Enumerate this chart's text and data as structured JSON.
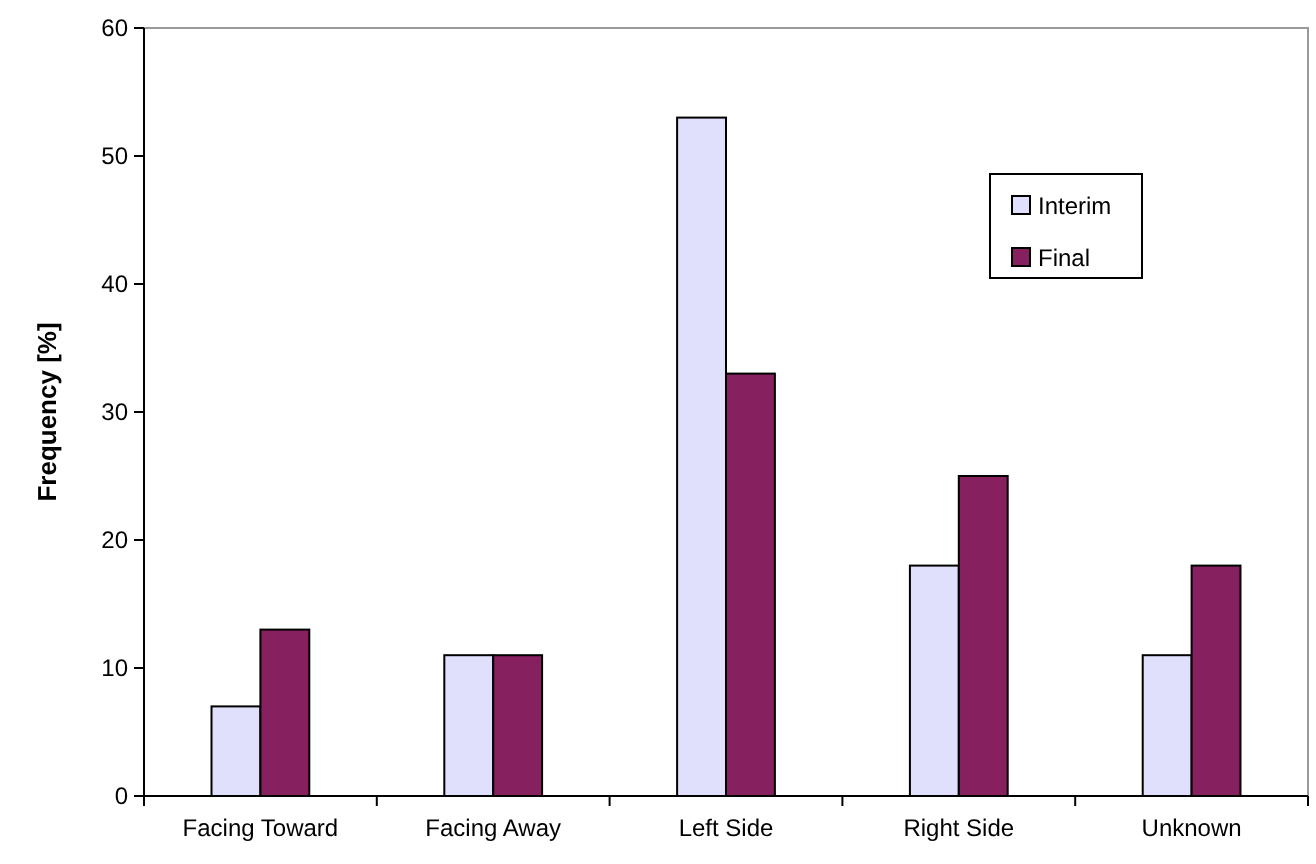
{
  "chart_data": {
    "type": "bar",
    "ylabel": "Frequency [%]",
    "categories": [
      "Facing Toward",
      "Facing Away",
      "Left Side",
      "Right Side",
      "Unknown"
    ],
    "series": [
      {
        "name": "Interim",
        "color": "#e0e0fc",
        "values": [
          7,
          11,
          53,
          18,
          11
        ]
      },
      {
        "name": "Final",
        "color": "#86205e",
        "values": [
          13,
          11,
          33,
          25,
          18
        ]
      }
    ],
    "ylim": [
      0,
      60
    ],
    "yticks": [
      0,
      10,
      20,
      30,
      40,
      50,
      60
    ],
    "grid": false,
    "legend": "top right"
  }
}
